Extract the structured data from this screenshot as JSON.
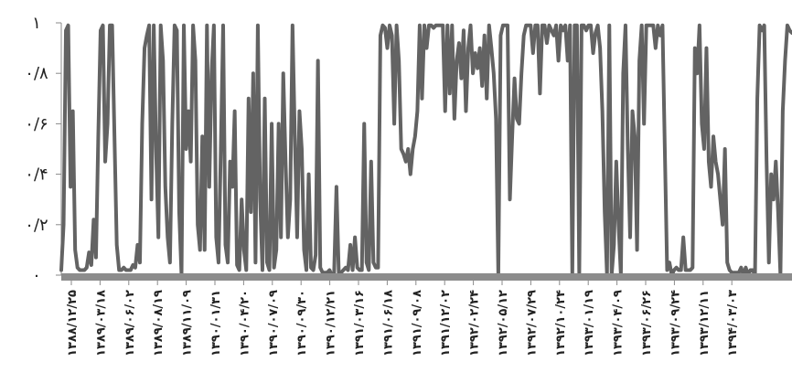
{
  "chart_data": {
    "type": "line",
    "title": "",
    "xlabel": "",
    "ylabel": "",
    "ylim": [
      0,
      1
    ],
    "grid": false,
    "legend": "none",
    "y_ticks": [
      {
        "value": 1.0,
        "label": "۱"
      },
      {
        "value": 0.8,
        "label": "۰/۸"
      },
      {
        "value": 0.6,
        "label": "۰/۶"
      },
      {
        "value": 0.4,
        "label": "۰/۴"
      },
      {
        "value": 0.2,
        "label": "۰/۲"
      },
      {
        "value": 0.0,
        "label": "۰"
      }
    ],
    "x_tick_labels": [
      "۱۳۸۸/۱۲/۲۵",
      "۱۳۸۹/۰۳/۱۸",
      "۱۳۸۹/۰۶/۰۲",
      "۱۳۸۹/۰۸/۱۹",
      "۱۳۸۹/۱۱/۰۹",
      "۱۳۹۰/۰۱/۳۱",
      "۱۳۹۰/۰۴/۲۰",
      "۱۳۹۰/۰۷/۰۹",
      "۱۳۹۰/۰۹/۳۰",
      "۱۳۹۰/۱۲/۲۱",
      "۱۳۹۱/۰۳/۱۶",
      "۱۳۹۱/۰۶/۱۸",
      "۱۳۹۱/۰۹/۰۸",
      "۱۳۹۱/۱۲/۰۲",
      "۱۳۹۲/۰۲/۲۴",
      "۱۳۹۲/۰۵/۱۲",
      "۱۳۹۲/۰۷/۲۹",
      "۱۳۹۲/۱۰/۲۴",
      "۱۳۹۳/۰۱/۱۹",
      "۱۳۹۳/۰۴/۰۹",
      "۱۳۹۳/۰۶/۲۶",
      "۱۳۹۳/۰۹/۲۴",
      "۱۳۹۳/۱۲/۱۱",
      "۱۳۹۴/۰۳/۰۳"
    ],
    "series": [
      {
        "color": "#636363",
        "values": [
          0.02,
          0.2,
          0.97,
          0.99,
          0.35,
          0.65,
          0.1,
          0.03,
          0.02,
          0.02,
          0.02,
          0.03,
          0.09,
          0.04,
          0.22,
          0.07,
          0.55,
          0.97,
          0.99,
          0.45,
          0.6,
          0.99,
          0.99,
          0.55,
          0.12,
          0.02,
          0.02,
          0.03,
          0.02,
          0.02,
          0.02,
          0.04,
          0.03,
          0.12,
          0.05,
          0.6,
          0.9,
          0.95,
          0.99,
          0.3,
          0.99,
          0.5,
          0.15,
          0.99,
          0.85,
          0.35,
          0.15,
          0.05,
          0.6,
          0.99,
          0.97,
          0.25,
          0.0,
          0.99,
          0.5,
          0.65,
          0.45,
          0.99,
          0.85,
          0.2,
          0.1,
          0.55,
          0.1,
          0.99,
          0.35,
          0.8,
          0.99,
          0.15,
          0.05,
          0.5,
          0.99,
          0.12,
          0.05,
          0.45,
          0.35,
          0.65,
          0.04,
          0.02,
          0.3,
          0.1,
          0.02,
          0.7,
          0.25,
          0.8,
          0.05,
          0.99,
          0.3,
          0.02,
          0.7,
          0.05,
          0.02,
          0.6,
          0.03,
          0.1,
          0.6,
          0.15,
          0.8,
          0.45,
          0.15,
          0.3,
          0.99,
          0.55,
          0.15,
          0.65,
          0.5,
          0.1,
          0.02,
          0.4,
          0.03,
          0.02,
          0.08,
          0.85,
          0.03,
          0.01,
          0.01,
          0.01,
          0.02,
          0.0,
          0.01,
          0.35,
          0.01,
          0.01,
          0.02,
          0.03,
          0.02,
          0.12,
          0.02,
          0.15,
          0.03,
          0.02,
          0.02,
          0.6,
          0.05,
          0.02,
          0.45,
          0.05,
          0.03,
          0.03,
          0.95,
          0.99,
          0.98,
          0.9,
          0.99,
          0.95,
          0.6,
          0.99,
          0.85,
          0.5,
          0.48,
          0.45,
          0.5,
          0.4,
          0.5,
          0.55,
          0.65,
          0.99,
          0.7,
          0.99,
          0.9,
          0.99,
          0.99,
          0.98,
          0.99,
          0.99,
          0.99,
          0.99,
          0.65,
          0.99,
          0.72,
          0.99,
          0.62,
          0.85,
          0.92,
          0.78,
          0.97,
          0.65,
          0.9,
          0.99,
          0.8,
          0.88,
          0.82,
          0.9,
          0.75,
          0.95,
          0.7,
          0.99,
          0.9,
          0.8,
          0.62,
          0.0,
          0.95,
          0.99,
          0.99,
          0.99,
          0.3,
          0.55,
          0.78,
          0.62,
          0.6,
          0.8,
          0.95,
          0.99,
          0.99,
          0.99,
          0.88,
          0.99,
          0.99,
          0.72,
          0.99,
          0.99,
          0.92,
          0.99,
          0.97,
          0.95,
          0.99,
          0.85,
          0.99,
          0.97,
          0.99,
          0.85,
          0.99,
          0.0,
          0.99,
          0.99,
          0.0,
          0.99,
          0.99,
          0.97,
          0.99,
          0.99,
          0.88,
          0.96,
          0.99,
          0.9,
          0.65,
          0.25,
          0.0,
          0.99,
          0.0,
          0.12,
          0.45,
          0.2,
          0.0,
          0.8,
          0.99,
          0.5,
          0.15,
          0.65,
          0.55,
          0.1,
          0.85,
          0.99,
          0.6,
          0.99,
          0.99,
          0.99,
          0.99,
          0.9,
          0.99,
          0.95,
          0.99,
          0.5,
          0.02,
          0.05,
          0.0,
          0.02,
          0.03,
          0.02,
          0.02,
          0.15,
          0.02,
          0.02,
          0.02,
          0.03,
          0.9,
          0.8,
          0.99,
          0.6,
          0.5,
          0.9,
          0.45,
          0.35,
          0.55,
          0.45,
          0.4,
          0.3,
          0.2,
          0.5,
          0.05,
          0.02,
          0.01,
          0.01,
          0.01,
          0.01,
          0.03,
          0.0,
          0.03,
          0.0,
          0.02,
          0.02,
          0.0,
          0.7,
          0.99,
          0.97,
          0.99,
          0.45,
          0.05,
          0.4,
          0.3,
          0.45,
          0.25,
          0.0,
          0.65,
          0.85,
          0.99,
          0.97,
          0.96
        ]
      }
    ]
  }
}
